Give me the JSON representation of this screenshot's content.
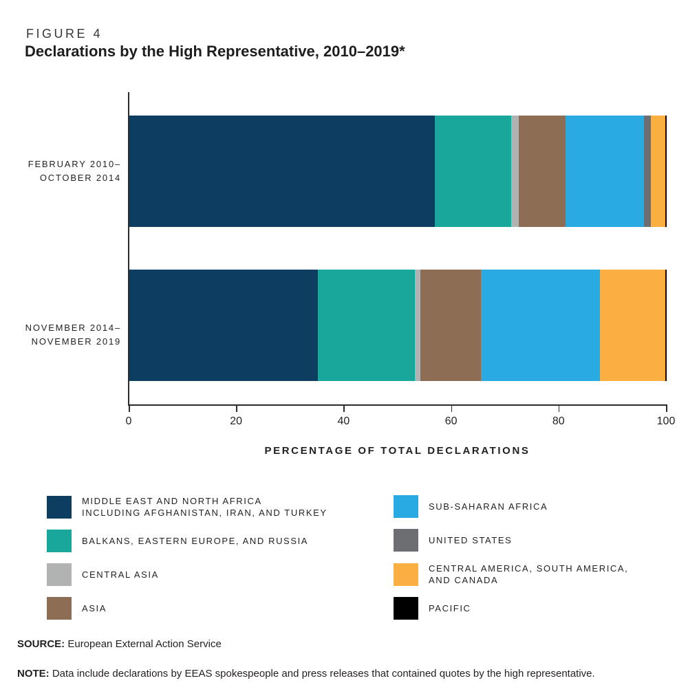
{
  "figure_label": "FIGURE 4",
  "title": "Declarations by the High Representative, 2010–2019*",
  "source": {
    "label": "SOURCE:",
    "text": "European External Action Service"
  },
  "note": {
    "label": "NOTE:",
    "text": "Data include declarations by EEAS spokespeople and press releases that contained quotes by the high representative."
  },
  "chart_data": {
    "type": "bar",
    "orientation": "horizontal",
    "stacked": true,
    "title": "Declarations by the High Representative, 2010–2019*",
    "xlabel": "PERCENTAGE OF TOTAL DECLARATIONS",
    "xlim": [
      0,
      100
    ],
    "xticks": [
      0,
      20,
      40,
      60,
      80,
      100
    ],
    "grid": false,
    "legend_position": "bottom-two-columns",
    "categories": [
      {
        "lines": [
          "FEBRUARY 2010–",
          "OCTOBER 2014"
        ]
      },
      {
        "lines": [
          "NOVEMBER 2014–",
          "NOVEMBER 2019"
        ]
      }
    ],
    "series": [
      {
        "name": "MIDDLE EAST AND NORTH AFRICA INCLUDING AFGHANISTAN, IRAN, AND TURKEY",
        "legend_lines": [
          "MIDDLE EAST AND NORTH AFRICA",
          "INCLUDING AFGHANISTAN, IRAN, AND TURKEY"
        ],
        "color": "#0d3e62",
        "values": [
          56.8,
          35.1
        ]
      },
      {
        "name": "BALKANS, EASTERN EUROPE, AND RUSSIA",
        "legend_lines": [
          "BALKANS, EASTERN EUROPE, AND RUSSIA"
        ],
        "color": "#19a79b",
        "values": [
          14.3,
          18.1
        ]
      },
      {
        "name": "CENTRAL ASIA",
        "legend_lines": [
          "CENTRAL ASIA"
        ],
        "color": "#b1b3b2",
        "values": [
          1.4,
          0.9
        ]
      },
      {
        "name": "ASIA",
        "legend_lines": [
          "ASIA"
        ],
        "color": "#8d6e54",
        "values": [
          8.7,
          11.3
        ]
      },
      {
        "name": "SUB-SAHARAN AFRICA",
        "legend_lines": [
          "SUB-SAHARAN AFRICA"
        ],
        "color": "#29abe2",
        "values": [
          14.6,
          22.2
        ]
      },
      {
        "name": "UNITED STATES",
        "legend_lines": [
          "UNITED STATES"
        ],
        "color": "#6d6e71",
        "values": [
          1.2,
          0
        ]
      },
      {
        "name": "CENTRAL AMERICA, SOUTH AMERICA, AND CANADA",
        "legend_lines": [
          "CENTRAL AMERICA, SOUTH AMERICA,",
          "AND CANADA"
        ],
        "color": "#faaf40",
        "values": [
          2.7,
          12.2
        ]
      },
      {
        "name": "PACIFIC",
        "legend_lines": [
          "PACIFIC"
        ],
        "color": "#000000",
        "values": [
          0.3,
          0.2
        ]
      }
    ],
    "legend_columns": [
      [
        0,
        1,
        2,
        3
      ],
      [
        4,
        5,
        6,
        7
      ]
    ]
  }
}
